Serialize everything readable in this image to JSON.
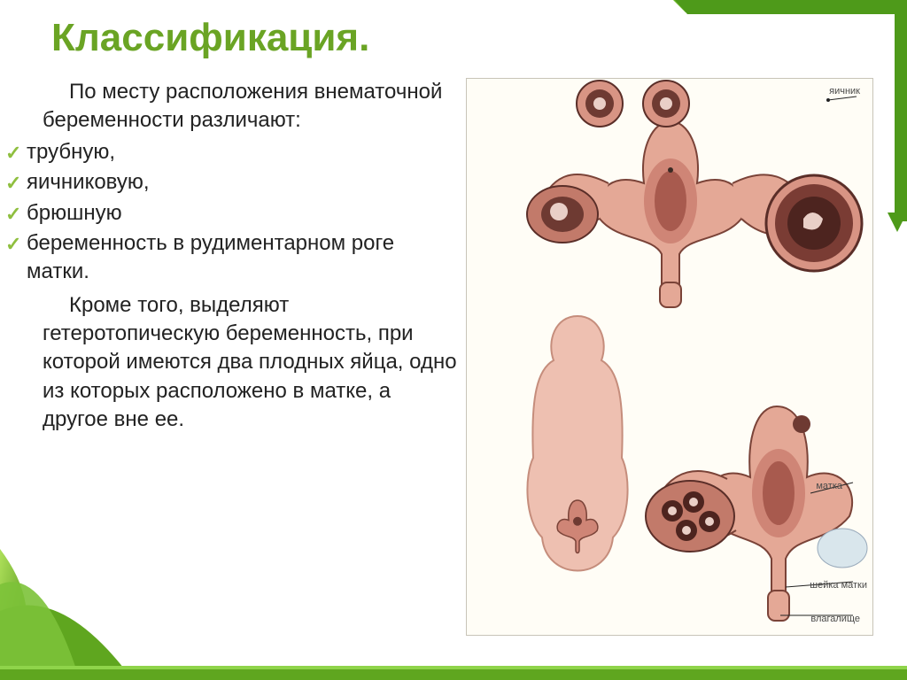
{
  "title": "Классификация.",
  "text": {
    "intro": "По месту расположения внематочной беременности различают:",
    "bullets": [
      "трубную,",
      " яичниковую,",
      "брюшную",
      "беременность в рудиментарном роге матки."
    ],
    "outro": "Кроме того, выделяют гетеротопическую беременность, при которой имеются два плодных яйца, одно из которых расположено в матке, а другое вне ее."
  },
  "figure": {
    "labels": {
      "ovary": "яичник",
      "uterus": "матка",
      "cervix": "шейка матки",
      "vagina": "влагалище"
    },
    "palette": {
      "organ_light": "#e4a896",
      "organ_mid": "#cf8576",
      "organ_dark": "#a85a4e",
      "embryo_dark": "#5a2e28",
      "outline": "#3a2a24",
      "body_fill": "#eec0b1",
      "paper": "#fffdf6"
    }
  },
  "theme": {
    "title_color": "#6aa424",
    "title_shadow": "#ffffff",
    "bullet_color": "#8fbf3f",
    "accent_green": "#5fa61f",
    "accent_green_dark": "#3e7a14",
    "background": "#ffffff",
    "text_color": "#222222",
    "title_fontsize": 44,
    "body_fontsize": 24
  }
}
